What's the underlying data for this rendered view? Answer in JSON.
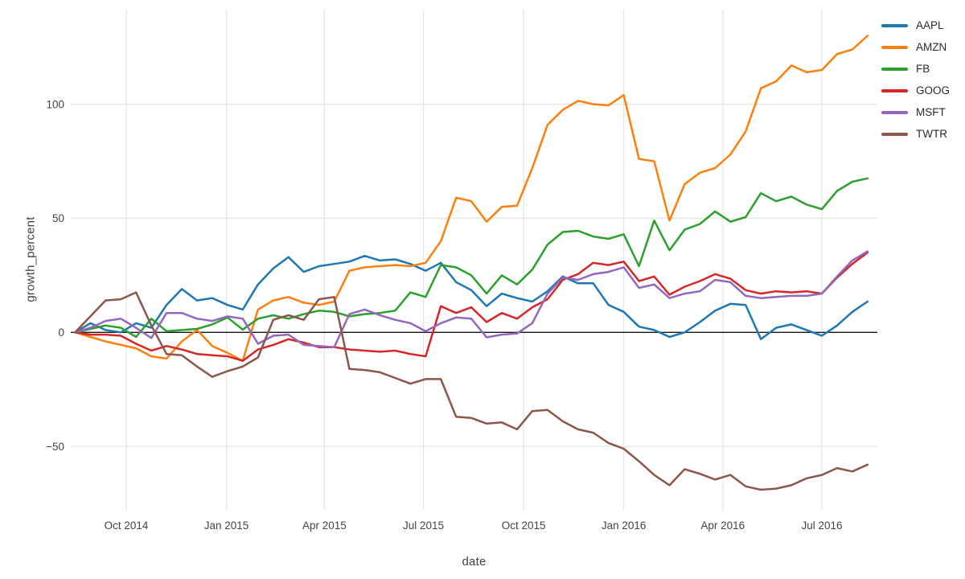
{
  "page": {
    "background": "#ffffff"
  },
  "axes": {
    "x_title": "date",
    "y_title": "growth_percent"
  },
  "chart_data": {
    "type": "line",
    "title": "",
    "xlabel": "date",
    "ylabel": "growth_percent",
    "legend_position": "right-top-outside",
    "grid": true,
    "grid_color": "#e6e6e6",
    "zeroline_color": "#161616",
    "tick_text_color": "#444444",
    "line_width": 2.5,
    "xlim_days": [
      -4,
      737
    ],
    "ylim": [
      -77.8,
      141.8
    ],
    "yticks": [
      {
        "v": 100,
        "label": "100"
      },
      {
        "v": 50,
        "label": "50"
      },
      {
        "v": 0,
        "label": "0"
      },
      {
        "v": -50,
        "label": "−50"
      }
    ],
    "xticks": [
      {
        "t": 47,
        "label": "Oct 2014"
      },
      {
        "t": 139,
        "label": "Jan 2015"
      },
      {
        "t": 229,
        "label": "Apr 2015"
      },
      {
        "t": 320,
        "label": "Jul 2015"
      },
      {
        "t": 412,
        "label": "Oct 2015"
      },
      {
        "t": 504,
        "label": "Jan 2016"
      },
      {
        "t": 595,
        "label": "Apr 2016"
      },
      {
        "t": 686,
        "label": "Jul 2016"
      }
    ],
    "x_days": [
      0,
      14,
      28,
      42,
      56,
      70,
      84,
      98,
      112,
      126,
      140,
      154,
      168,
      182,
      196,
      210,
      224,
      238,
      252,
      266,
      280,
      294,
      308,
      322,
      336,
      350,
      364,
      378,
      392,
      406,
      420,
      434,
      448,
      462,
      476,
      490,
      504,
      518,
      532,
      546,
      560,
      574,
      588,
      602,
      616,
      630,
      644,
      658,
      672,
      686,
      700,
      714,
      728
    ],
    "series": [
      {
        "name": "AAPL",
        "color": "#1f77b4",
        "values": [
          0,
          4,
          1,
          0,
          4,
          2,
          12,
          19,
          14,
          15,
          12,
          10,
          21,
          28,
          33,
          26.5,
          29,
          30,
          31,
          33.5,
          31.5,
          32,
          30,
          27,
          30.5,
          22,
          18.5,
          11.5,
          17,
          15,
          13.5,
          18,
          24.5,
          21.5,
          21.5,
          12,
          9,
          2.5,
          1,
          -2,
          0,
          4.5,
          9.5,
          12.5,
          12,
          -3,
          2,
          3.5,
          1,
          -1.5,
          3,
          9,
          13.5
        ]
      },
      {
        "name": "AMZN",
        "color": "#ff7f0e",
        "values": [
          0,
          -2,
          -4,
          -5.5,
          -7,
          -10.5,
          -11.5,
          -4,
          1,
          -6,
          -9,
          -12.5,
          10,
          14,
          15.5,
          13,
          12,
          13.5,
          27,
          28.5,
          29,
          29.5,
          29,
          30.5,
          40,
          59,
          57.5,
          48.5,
          55,
          55.5,
          72,
          91,
          97.5,
          101.5,
          100,
          99.5,
          104,
          76,
          75,
          49,
          65,
          70,
          72,
          78,
          88,
          107,
          110,
          117,
          114,
          115,
          122,
          124,
          130
        ]
      },
      {
        "name": "FB",
        "color": "#2ca02c",
        "values": [
          0,
          1.5,
          3,
          2,
          -2,
          6,
          0.5,
          1,
          1.5,
          3.5,
          6.5,
          1.2,
          6,
          7.5,
          6,
          8,
          9.5,
          9,
          7,
          8,
          8.5,
          9.5,
          17.5,
          15.5,
          29.5,
          28.5,
          25,
          17,
          25,
          21,
          27.5,
          38.5,
          44,
          44.5,
          42,
          41,
          43,
          29,
          49,
          36,
          45,
          47.5,
          53,
          48.5,
          50.5,
          61,
          57.5,
          59.5,
          56,
          54,
          62,
          66,
          67.5
        ]
      },
      {
        "name": "GOOG",
        "color": "#d62728",
        "values": [
          0,
          -1,
          -1,
          -1.5,
          -5,
          -8,
          -6,
          -7.5,
          -9.5,
          -10,
          -10.5,
          -12.5,
          -7.5,
          -5.5,
          -3,
          -4.5,
          -6.5,
          -6.5,
          -7.5,
          -8,
          -8.5,
          -8,
          -9.5,
          -10.5,
          11.5,
          8.5,
          11,
          4.5,
          8.5,
          6,
          11,
          14.5,
          23,
          25.5,
          30.5,
          29.5,
          31,
          22.5,
          24.5,
          16.5,
          20,
          22.5,
          25.5,
          23.5,
          18.5,
          17,
          18,
          17.5,
          18,
          17,
          24,
          30,
          35
        ]
      },
      {
        "name": "MSFT",
        "color": "#9467bd",
        "values": [
          0,
          2,
          5,
          6,
          2,
          -2.5,
          8.5,
          8.5,
          6,
          5,
          7,
          6,
          -5,
          -1.5,
          -1,
          -5.5,
          -6,
          -6.5,
          8,
          10,
          7.5,
          5.5,
          4,
          0.5,
          4,
          6.5,
          6,
          -2.2,
          -1,
          -0.5,
          4,
          17,
          24,
          23,
          25.5,
          26.5,
          28.5,
          19.5,
          21,
          15,
          17,
          18,
          23,
          22,
          16,
          15,
          15.5,
          16,
          16,
          17,
          24.5,
          31.5,
          35.5
        ]
      },
      {
        "name": "TWTR",
        "color": "#8c564b",
        "values": [
          0,
          7,
          14,
          14.5,
          17.5,
          3,
          -9.5,
          -10,
          -15,
          -19.5,
          -17,
          -15,
          -11,
          5.5,
          7.5,
          5.5,
          14.5,
          15.5,
          -16,
          -16.5,
          -17.5,
          -20,
          -22.5,
          -20.5,
          -20.5,
          -37,
          -37.5,
          -40,
          -39.5,
          -42.5,
          -34.5,
          -34,
          -39,
          -42.5,
          -44,
          -48.5,
          -51,
          -56.5,
          -62.5,
          -67,
          -60,
          -62,
          -64.5,
          -62.5,
          -67.5,
          -69,
          -68.5,
          -67,
          -64,
          -62.5,
          -59.5,
          -61,
          -58
        ]
      }
    ]
  }
}
